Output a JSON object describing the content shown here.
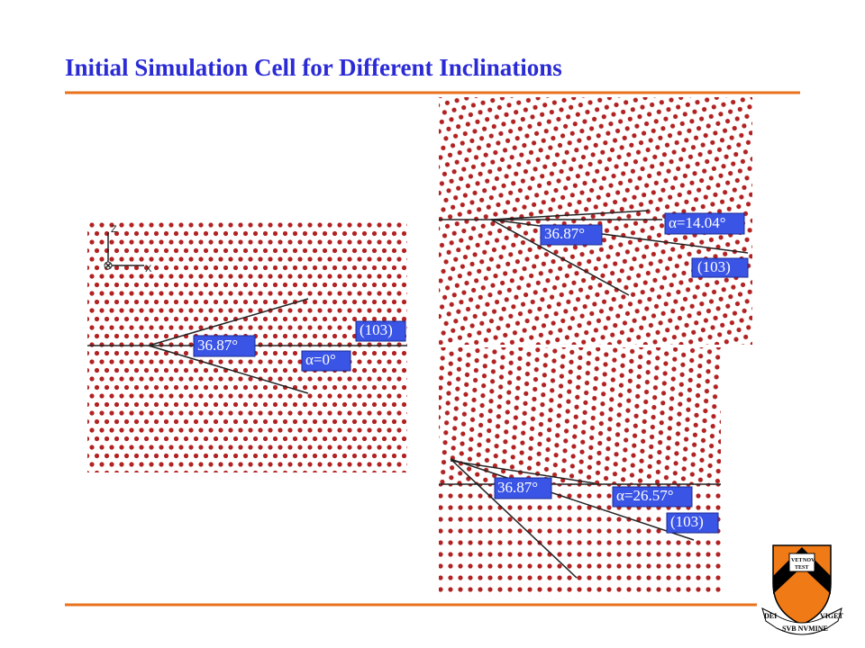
{
  "title": "Initial Simulation Cell for Different Inclinations",
  "panels": [
    {
      "axes": {
        "z": "Z",
        "x": "X"
      },
      "angle": "36.87°",
      "alpha": "α=0°",
      "plane": "(103)"
    },
    {
      "angle": "36.87°",
      "alpha": "α=14.04°",
      "plane": "(103)"
    },
    {
      "angle": "36.87°",
      "alpha": "α=26.57°",
      "plane": "(103)"
    }
  ],
  "logo": {
    "book_left": "VET",
    "book_right": "NOV",
    "book_bottom": "TEST",
    "motto_left": "DEI",
    "motto_center": "SVB NVMINE",
    "motto_right": "VIGET"
  }
}
